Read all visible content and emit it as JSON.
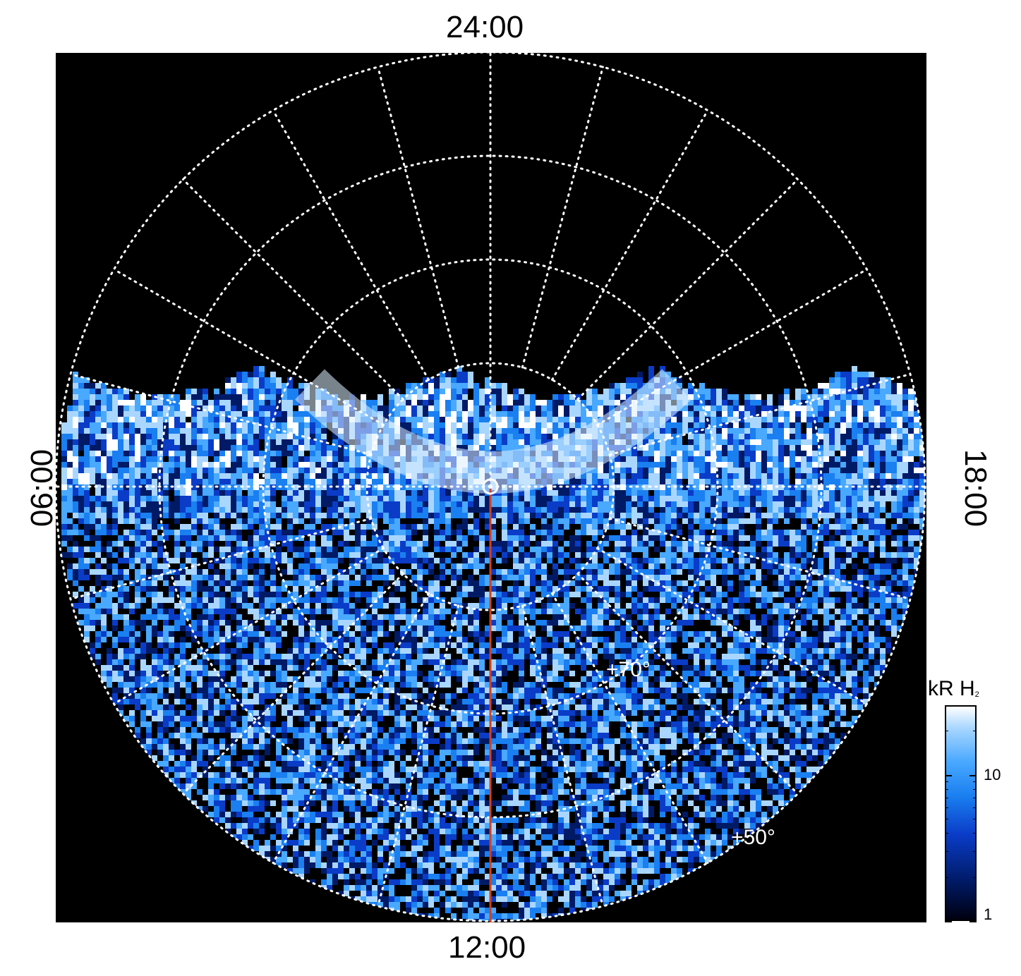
{
  "labels": {
    "top": "24:00",
    "bottom": "12:00",
    "left": "06:00",
    "right": "18:00",
    "lat_inner": "+70°",
    "lat_outer": "+50°"
  },
  "colorbar": {
    "title": "kR H",
    "title_sub": "2",
    "tick_10": "10",
    "tick_1": "1",
    "scale": "log",
    "range": [
      1,
      30
    ],
    "colors": [
      "#000010",
      "#001a66",
      "#0a3cc8",
      "#1a7ff0",
      "#49a8ff",
      "#a9d6ff",
      "#ffffff"
    ]
  },
  "colors": {
    "background": "#000000",
    "grid": "#ffffff",
    "meridian_line": "#d2401c"
  }
}
